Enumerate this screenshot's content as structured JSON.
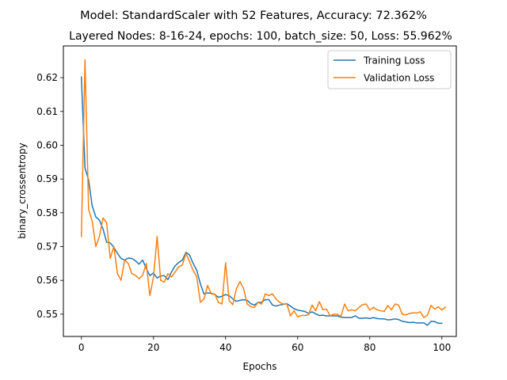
{
  "chart_data": {
    "type": "line",
    "title": "Model: StandardScaler with 52 Features, Accuracy: 72.362%",
    "subtitle": "Layered Nodes: 8-16-24, epochs: 100, batch_size: 50, Loss: 55.962%",
    "xlabel": "Epochs",
    "ylabel": "binary_crossentropy",
    "xlim": [
      -5,
      104
    ],
    "ylim": [
      0.5434,
      0.6294
    ],
    "xticks": [
      0,
      20,
      40,
      60,
      80,
      100
    ],
    "yticks": [
      0.55,
      0.56,
      0.57,
      0.58,
      0.59,
      0.6,
      0.61,
      0.62
    ],
    "xtick_labels": [
      "0",
      "20",
      "40",
      "60",
      "80",
      "100"
    ],
    "ytick_labels": [
      "0.55",
      "0.56",
      "0.57",
      "0.58",
      "0.59",
      "0.60",
      "0.61",
      "0.62"
    ],
    "grid": false,
    "legend_position": "top-right",
    "series": [
      {
        "name": "Training Loss",
        "color": "#1f77b4",
        "values": [
          0.6202,
          0.5932,
          0.5897,
          0.582,
          0.5788,
          0.5778,
          0.5752,
          0.5713,
          0.5711,
          0.5698,
          0.568,
          0.5665,
          0.566,
          0.5666,
          0.5665,
          0.5658,
          0.5648,
          0.566,
          0.5635,
          0.5614,
          0.5622,
          0.5607,
          0.5613,
          0.5614,
          0.5602,
          0.5625,
          0.5643,
          0.5653,
          0.566,
          0.5683,
          0.5675,
          0.565,
          0.563,
          0.559,
          0.556,
          0.5563,
          0.5562,
          0.5558,
          0.555,
          0.5553,
          0.5558,
          0.5555,
          0.5545,
          0.5538,
          0.5541,
          0.5543,
          0.5541,
          0.5531,
          0.5527,
          0.5535,
          0.5535,
          0.5543,
          0.5543,
          0.5527,
          0.5524,
          0.5527,
          0.5529,
          0.5531,
          0.5524,
          0.5516,
          0.5512,
          0.551,
          0.5508,
          0.5502,
          0.5507,
          0.5501,
          0.5496,
          0.5497,
          0.5495,
          0.5495,
          0.5495,
          0.5495,
          0.5491,
          0.549,
          0.549,
          0.549,
          0.5495,
          0.5488,
          0.5488,
          0.5489,
          0.5487,
          0.549,
          0.5487,
          0.5486,
          0.5486,
          0.5483,
          0.5484,
          0.5486,
          0.5484,
          0.5479,
          0.5477,
          0.5475,
          0.5476,
          0.5474,
          0.5474,
          0.5474,
          0.5467,
          0.5479,
          0.5478,
          0.5473,
          0.5473
        ]
      },
      {
        "name": "Validation Loss",
        "color": "#ff7f0e",
        "values": [
          0.573,
          0.6253,
          0.581,
          0.5775,
          0.57,
          0.573,
          0.5785,
          0.577,
          0.5665,
          0.57,
          0.562,
          0.56,
          0.566,
          0.565,
          0.562,
          0.5615,
          0.5605,
          0.5615,
          0.565,
          0.5555,
          0.561,
          0.573,
          0.56,
          0.5595,
          0.562,
          0.561,
          0.5625,
          0.564,
          0.5645,
          0.568,
          0.5655,
          0.563,
          0.561,
          0.5535,
          0.5545,
          0.5585,
          0.556,
          0.556,
          0.5535,
          0.553,
          0.5652,
          0.554,
          0.5528,
          0.5575,
          0.5597,
          0.5575,
          0.553,
          0.5522,
          0.552,
          0.5535,
          0.553,
          0.556,
          0.5555,
          0.556,
          0.5545,
          0.5535,
          0.553,
          0.553,
          0.5495,
          0.551,
          0.5492,
          0.5496,
          0.5496,
          0.5498,
          0.5527,
          0.551,
          0.5537,
          0.5513,
          0.5515,
          0.5495,
          0.55,
          0.55,
          0.5493,
          0.553,
          0.551,
          0.5513,
          0.551,
          0.552,
          0.5528,
          0.553,
          0.5512,
          0.552,
          0.5513,
          0.551,
          0.5508,
          0.5526,
          0.5513,
          0.553,
          0.5527,
          0.55,
          0.5498,
          0.5502,
          0.5504,
          0.5503,
          0.5507,
          0.549,
          0.5497,
          0.5526,
          0.5515,
          0.5522,
          0.5512,
          0.5521
        ]
      }
    ]
  }
}
